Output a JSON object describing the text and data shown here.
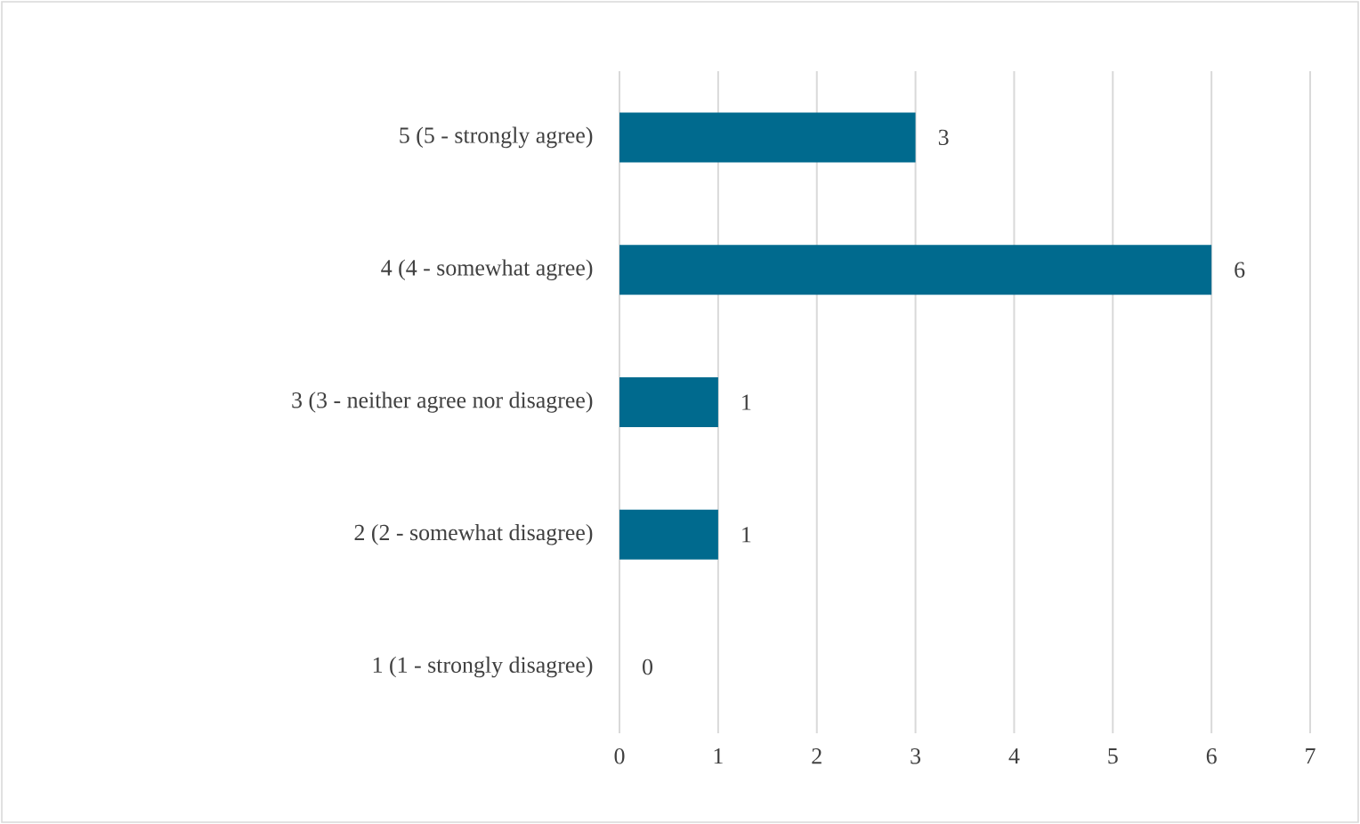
{
  "chart_data": {
    "type": "bar",
    "orientation": "horizontal",
    "categories": [
      "5 (5 - strongly agree)",
      "4 (4 - somewhat agree)",
      "3 (3 - neither agree nor disagree)",
      "2 (2 - somewhat disagree)",
      "1 (1 - strongly disagree)"
    ],
    "values": [
      3,
      6,
      1,
      1,
      0
    ],
    "color": "#006a8e",
    "xlim": [
      0,
      7
    ],
    "xticks": [
      0,
      1,
      2,
      3,
      4,
      5,
      6,
      7
    ],
    "grid": "x",
    "data_labels": true
  }
}
